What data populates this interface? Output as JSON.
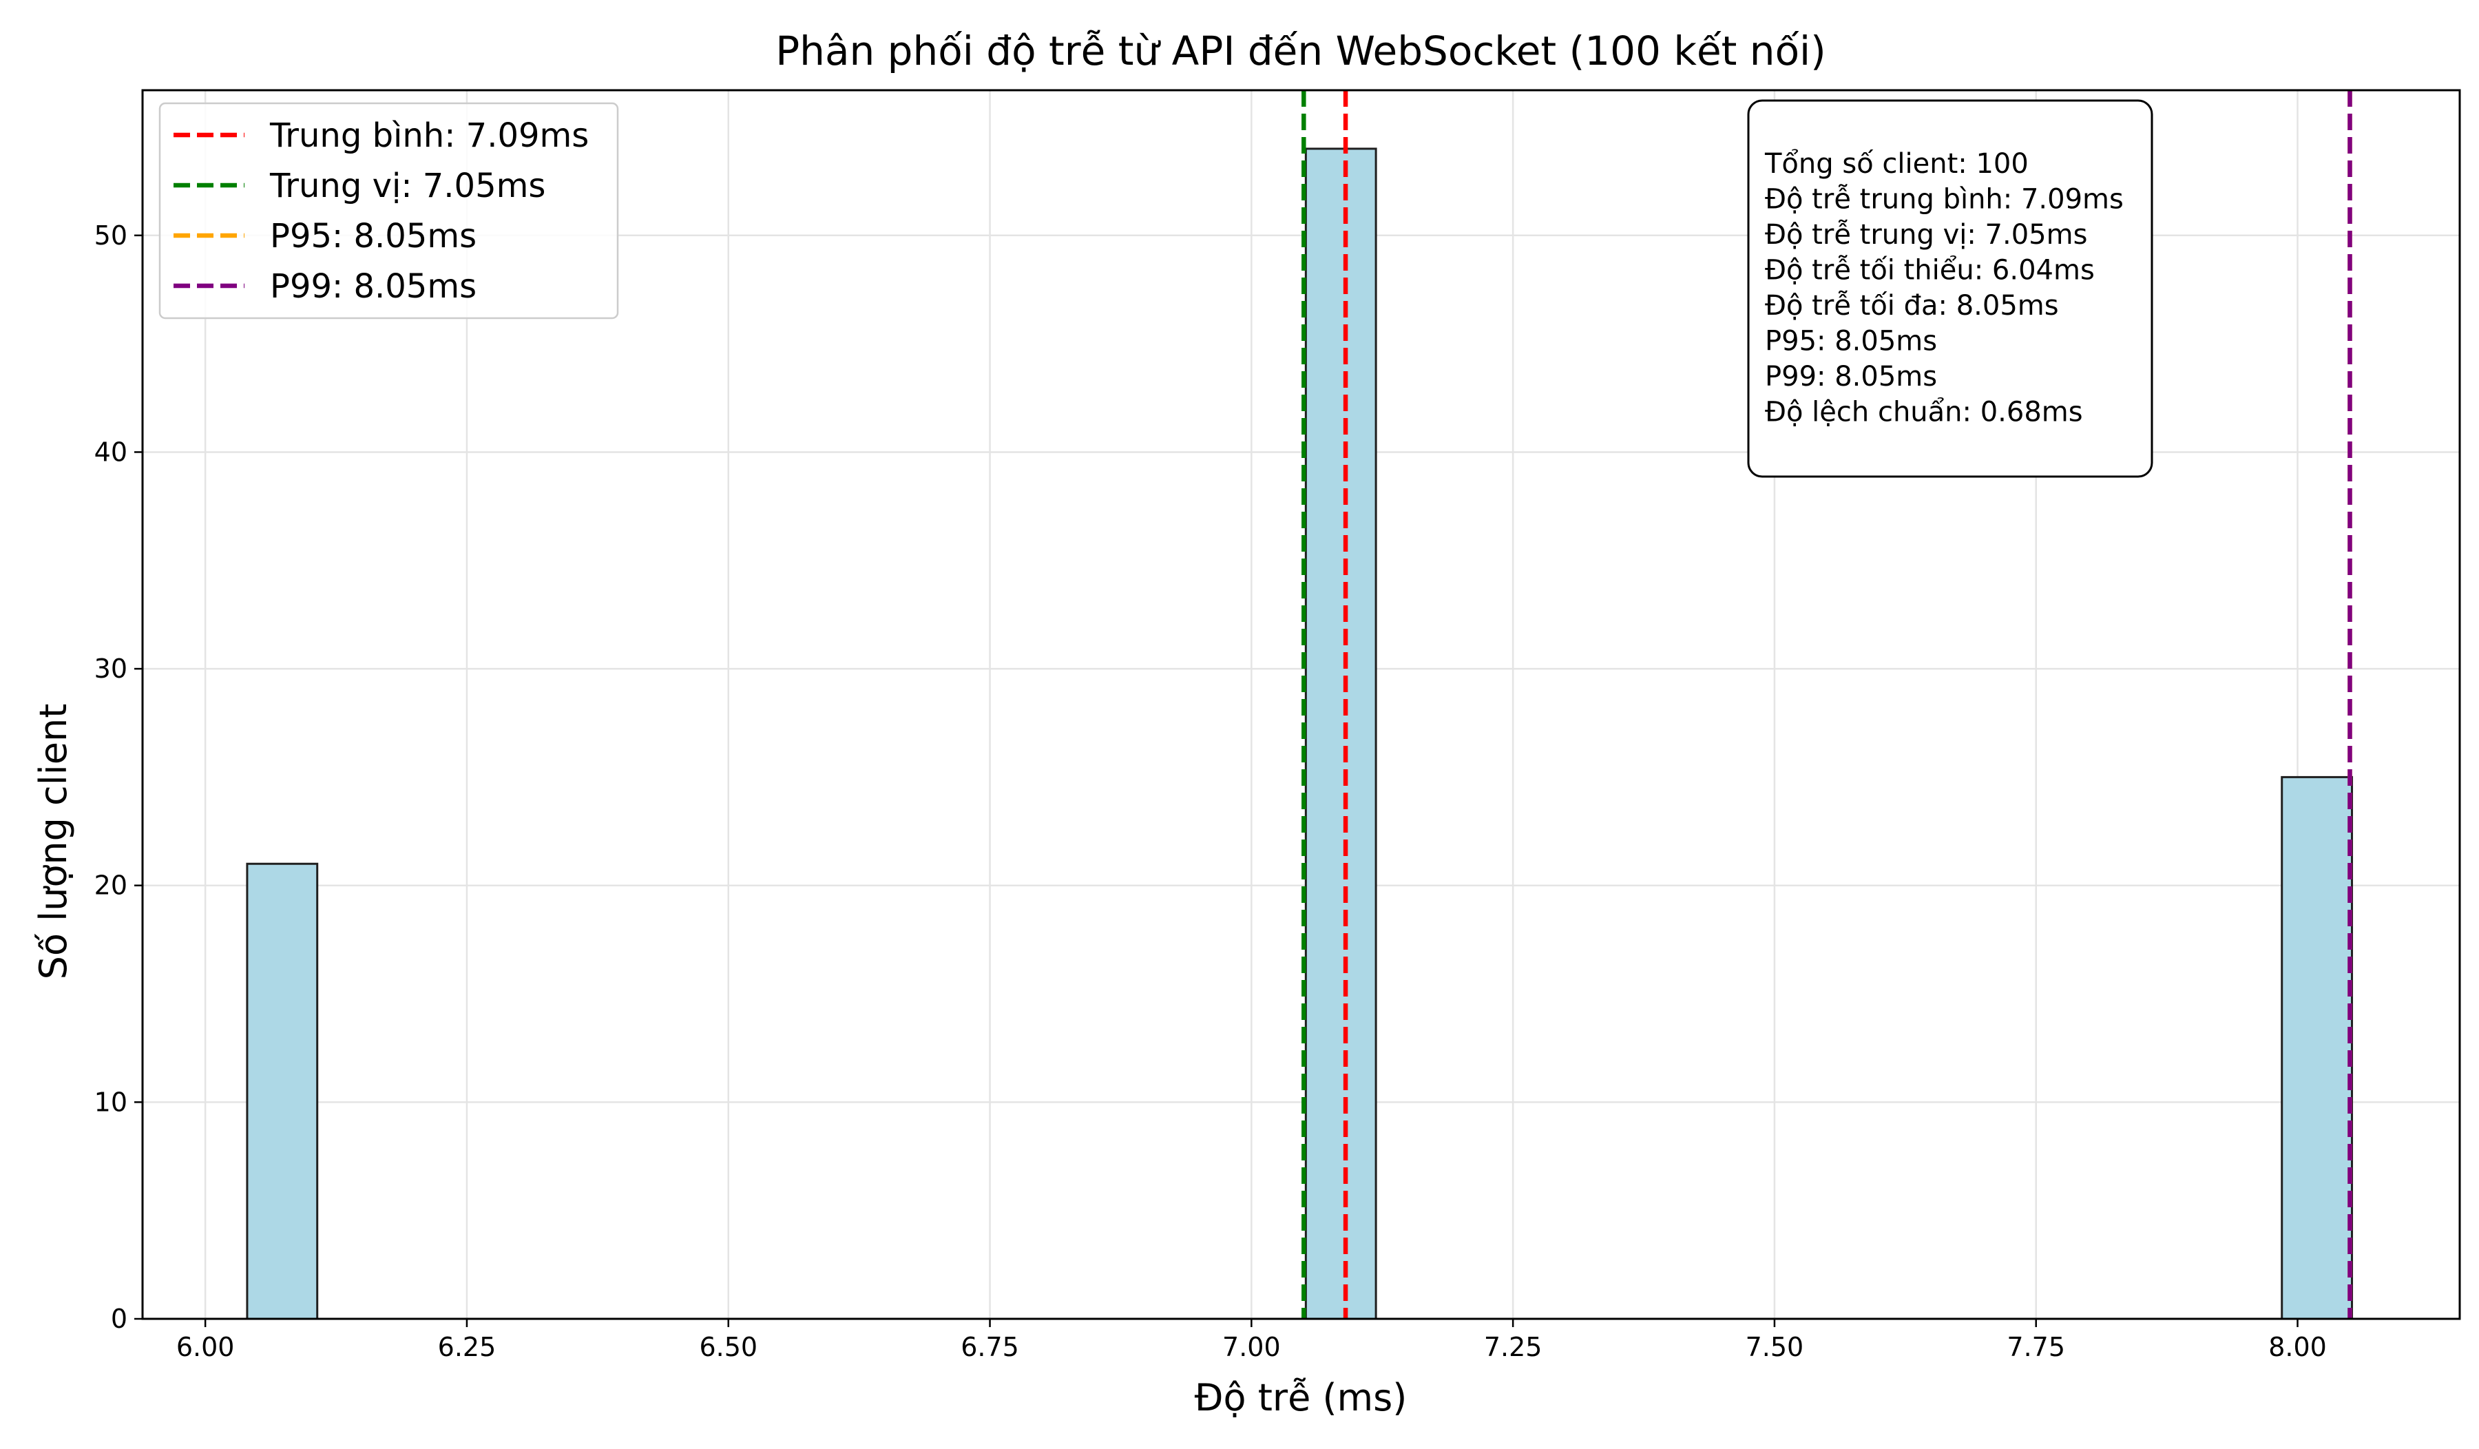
{
  "chart_data": {
    "type": "bar",
    "title": "Phân phối độ trễ từ API đến WebSocket (100 kết nối)",
    "xlabel": "Độ trễ (ms)",
    "ylabel": "Số lượng client",
    "xlim": [
      5.94,
      8.155
    ],
    "ylim": [
      0,
      56.7
    ],
    "x_ticks": [
      6.0,
      6.25,
      6.5,
      6.75,
      7.0,
      7.25,
      7.5,
      7.75,
      8.0
    ],
    "x_tick_labels": [
      "6.00",
      "6.25",
      "6.50",
      "6.75",
      "7.00",
      "7.25",
      "7.50",
      "7.75",
      "8.00"
    ],
    "y_ticks": [
      0,
      10,
      20,
      30,
      40,
      50
    ],
    "y_tick_labels": [
      "0",
      "10",
      "20",
      "30",
      "40",
      "50"
    ],
    "grid": true,
    "bars": [
      {
        "x0": 6.04,
        "x1": 6.107,
        "count": 21
      },
      {
        "x0": 7.052,
        "x1": 7.119,
        "count": 54
      },
      {
        "x0": 7.985,
        "x1": 8.052,
        "count": 25
      }
    ],
    "reference_lines": [
      {
        "label": "Trung bình: 7.09ms",
        "x": 7.09,
        "color": "#ff0000"
      },
      {
        "label": "Trung vị: 7.05ms",
        "x": 7.05,
        "color": "#008000"
      },
      {
        "label": "P95: 8.05ms",
        "x": 8.05,
        "color": "#ffa500"
      },
      {
        "label": "P99: 8.05ms",
        "x": 8.05,
        "color": "#800080"
      }
    ],
    "legend_position": "top-left",
    "stats_box": [
      "Tổng số client: 100",
      "Độ trễ trung bình: 7.09ms",
      "Độ trễ trung vị: 7.05ms",
      "Độ trễ tối thiểu: 6.04ms",
      "Độ trễ tối đa: 8.05ms",
      "P95: 8.05ms",
      "P99: 8.05ms",
      "Độ lệch chuẩn: 0.68ms"
    ],
    "bar_color": "#add8e6",
    "bar_edge_color": "#1f1f1f"
  }
}
